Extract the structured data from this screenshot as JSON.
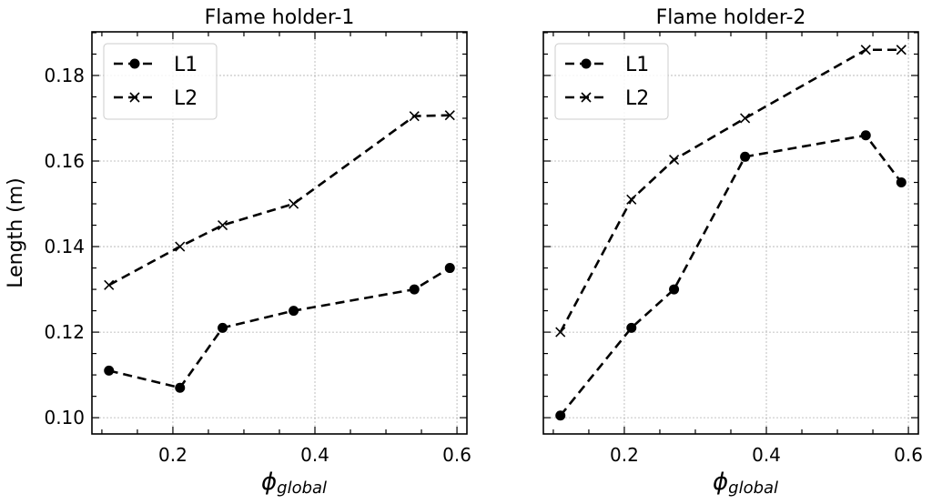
{
  "chart_data": {
    "type": "line",
    "shared_ylabel": "Length (m)",
    "panels": [
      {
        "title": "Flame holder-1",
        "xlabel_symbol": "ϕ",
        "xlabel_sub": "global",
        "xlim": [
          0.086,
          0.614
        ],
        "ylim": [
          0.0962,
          0.1902
        ],
        "xticks": [
          0.2,
          0.4,
          0.6
        ],
        "xtick_labels": [
          "0.2",
          "0.4",
          "0.6"
        ],
        "yticks": [
          0.1,
          0.12,
          0.14,
          0.16,
          0.18
        ],
        "ytick_labels": [
          "0.10",
          "0.12",
          "0.14",
          "0.16",
          "0.18"
        ],
        "grid": true,
        "legend_position": "top-left",
        "x": [
          0.11,
          0.21,
          0.27,
          0.37,
          0.54,
          0.59
        ],
        "series": [
          {
            "name": "L1",
            "marker": "circle",
            "values": [
              0.111,
              0.107,
              0.121,
              0.125,
              0.13,
              0.135
            ]
          },
          {
            "name": "L2",
            "marker": "x",
            "values": [
              0.131,
              0.14,
              0.145,
              0.15,
              0.1705,
              0.1707
            ]
          }
        ]
      },
      {
        "title": "Flame holder-2",
        "xlabel_symbol": "ϕ",
        "xlabel_sub": "global",
        "xlim": [
          0.086,
          0.614
        ],
        "ylim": [
          0.0962,
          0.1902
        ],
        "xticks": [
          0.2,
          0.4,
          0.6
        ],
        "xtick_labels": [
          "0.2",
          "0.4",
          "0.6"
        ],
        "yticks": [
          0.1,
          0.12,
          0.14,
          0.16,
          0.18
        ],
        "ytick_labels": [],
        "grid": true,
        "legend_position": "top-left",
        "x": [
          0.11,
          0.21,
          0.27,
          0.37,
          0.54,
          0.59
        ],
        "series": [
          {
            "name": "L1",
            "marker": "circle",
            "values": [
              0.1005,
              0.121,
              0.13,
              0.161,
              0.166,
              0.155
            ]
          },
          {
            "name": "L2",
            "marker": "x",
            "values": [
              0.12,
              0.151,
              0.1603,
              0.17,
              0.186,
              0.186
            ]
          }
        ]
      }
    ]
  }
}
